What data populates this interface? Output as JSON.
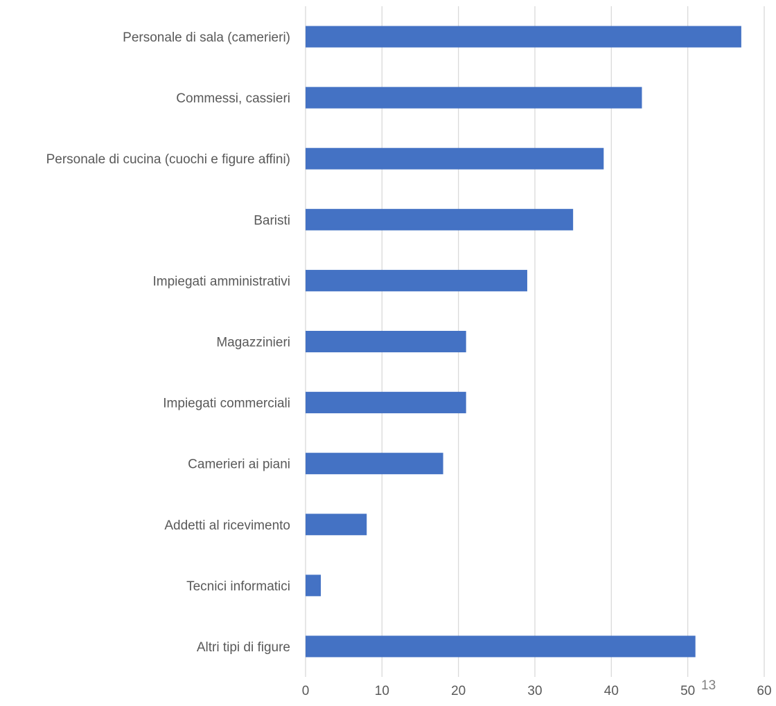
{
  "chart_data": {
    "type": "bar",
    "orientation": "horizontal",
    "categories": [
      "Personale di sala (camerieri)",
      "Commessi, cassieri",
      "Personale di cucina (cuochi e figure affini)",
      "Baristi",
      "Impiegati amministrativi",
      "Magazzinieri",
      "Impiegati commerciali",
      "Camerieri ai piani",
      "Addetti al ricevimento",
      "Tecnici informatici",
      "Altri tipi di figure"
    ],
    "values": [
      57,
      44,
      39,
      35,
      29,
      21,
      21,
      18,
      8,
      2,
      51
    ],
    "xlim": [
      0,
      60
    ],
    "xticks": [
      "0",
      "10",
      "20",
      "30",
      "40",
      "50",
      "60"
    ],
    "grid": true,
    "title": "",
    "xlabel": "",
    "ylabel": "",
    "bar_color": "#4472C4"
  },
  "page_number": "13"
}
